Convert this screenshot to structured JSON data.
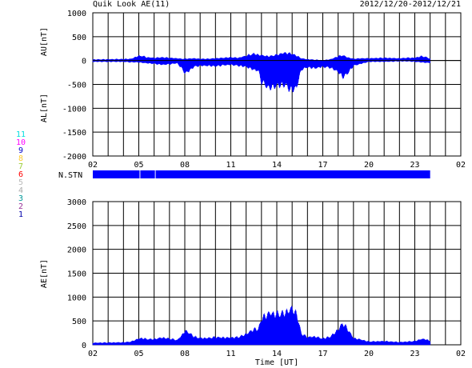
{
  "header": {
    "title": "Quik Look AE(11)",
    "date_range": "2012/12/20-2012/12/21"
  },
  "colors": {
    "fill": "#0000ff",
    "grid": "#000000",
    "zero_line": "#000000"
  },
  "station_legend": [
    {
      "label": "11",
      "color": "#00dddd"
    },
    {
      "label": "10",
      "color": "#ff00ff"
    },
    {
      "label": "9",
      "color": "#0000cc"
    },
    {
      "label": "8",
      "color": "#ffcc33"
    },
    {
      "label": "7",
      "color": "#99cc33"
    },
    {
      "label": "6",
      "color": "#ff0000"
    },
    {
      "label": "5",
      "color": "#bbbbbb"
    },
    {
      "label": "4",
      "color": "#aaaaaa"
    },
    {
      "label": "3",
      "color": "#009999"
    },
    {
      "label": "2",
      "color": "#993399"
    },
    {
      "label": "1",
      "color": "#0000aa"
    }
  ],
  "chart_data": [
    {
      "type": "area",
      "id": "au_al",
      "ylabel_upper": "AU[nT]",
      "ylabel_lower": "AL[nT]",
      "ylim": [
        -2000,
        1000
      ],
      "yticks": [
        1000,
        500,
        0,
        -500,
        -1000,
        -1500,
        -2000
      ],
      "xlim": [
        2,
        26
      ],
      "xticks": [
        "02",
        "05",
        "08",
        "11",
        "14",
        "17",
        "20",
        "23",
        "02"
      ],
      "grid": true,
      "series": [
        {
          "x": [
            2.0,
            3.0,
            4.0,
            4.5,
            4.9,
            5.2,
            5.5,
            6.0,
            6.5,
            7.0,
            7.5,
            7.8,
            8.0,
            8.3,
            8.6,
            9.0,
            9.5,
            10.0,
            10.5,
            11.0,
            11.5,
            12.0,
            12.5,
            12.8,
            13.0,
            13.5,
            14.0,
            14.5,
            15.0,
            15.3,
            15.6,
            16.0,
            16.5,
            17.0,
            17.5,
            18.0,
            18.3,
            18.6,
            19.0,
            19.5,
            20.0,
            21.0,
            22.0,
            22.5,
            23.0,
            23.4,
            23.7,
            24.0
          ],
          "au": [
            15,
            20,
            25,
            30,
            80,
            90,
            60,
            50,
            60,
            50,
            40,
            30,
            30,
            35,
            40,
            30,
            30,
            40,
            50,
            60,
            50,
            90,
            130,
            110,
            100,
            80,
            110,
            150,
            130,
            90,
            40,
            20,
            10,
            0,
            20,
            80,
            100,
            60,
            30,
            40,
            40,
            50,
            40,
            50,
            50,
            80,
            70,
            30
          ],
          "al": [
            -20,
            -20,
            -20,
            -30,
            -30,
            -40,
            -50,
            -60,
            -80,
            -70,
            -50,
            -150,
            -250,
            -200,
            -120,
            -100,
            -100,
            -110,
            -90,
            -80,
            -100,
            -120,
            -180,
            -200,
            -420,
            -550,
            -500,
            -480,
            -600,
            -520,
            -180,
            -130,
            -150,
            -120,
            -140,
            -220,
            -330,
            -260,
            -100,
            -60,
            -20,
            -20,
            -10,
            -10,
            -20,
            -30,
            -40,
            -40
          ]
        }
      ]
    },
    {
      "type": "bar",
      "id": "n_stn",
      "label": "N.STN",
      "xlim": [
        2,
        26
      ],
      "xticks": [
        "02",
        "05",
        "08",
        "11",
        "14",
        "17",
        "20",
        "23",
        "02"
      ],
      "segments": [
        [
          2.0,
          5.05
        ],
        [
          5.1,
          6.05
        ],
        [
          6.1,
          24.0
        ]
      ]
    },
    {
      "type": "area",
      "id": "ae",
      "ylabel": "AE[nT]",
      "xlabel": "Time [UT]",
      "ylim": [
        0,
        3000
      ],
      "yticks": [
        3000,
        2500,
        2000,
        1500,
        1000,
        500,
        0
      ],
      "xlim": [
        2,
        26
      ],
      "xticks": [
        "02",
        "05",
        "08",
        "11",
        "14",
        "17",
        "20",
        "23",
        "02"
      ],
      "grid": true,
      "series": [
        {
          "x": [
            2.0,
            3.0,
            4.0,
            4.5,
            4.9,
            5.2,
            5.5,
            6.0,
            6.5,
            7.0,
            7.5,
            7.8,
            8.0,
            8.3,
            8.6,
            9.0,
            9.5,
            10.0,
            10.5,
            11.0,
            11.5,
            12.0,
            12.5,
            12.8,
            13.0,
            13.5,
            14.0,
            14.5,
            15.0,
            15.3,
            15.6,
            16.0,
            16.5,
            17.0,
            17.5,
            18.0,
            18.3,
            18.6,
            19.0,
            19.5,
            20.0,
            21.0,
            22.0,
            22.5,
            23.0,
            23.4,
            23.7,
            24.0
          ],
          "values": [
            35,
            40,
            45,
            60,
            110,
            130,
            110,
            110,
            140,
            120,
            90,
            180,
            280,
            235,
            160,
            130,
            130,
            150,
            140,
            140,
            150,
            210,
            310,
            310,
            520,
            630,
            610,
            630,
            730,
            610,
            220,
            150,
            160,
            120,
            160,
            300,
            430,
            320,
            130,
            100,
            60,
            70,
            50,
            60,
            70,
            110,
            110,
            70
          ]
        }
      ]
    }
  ]
}
